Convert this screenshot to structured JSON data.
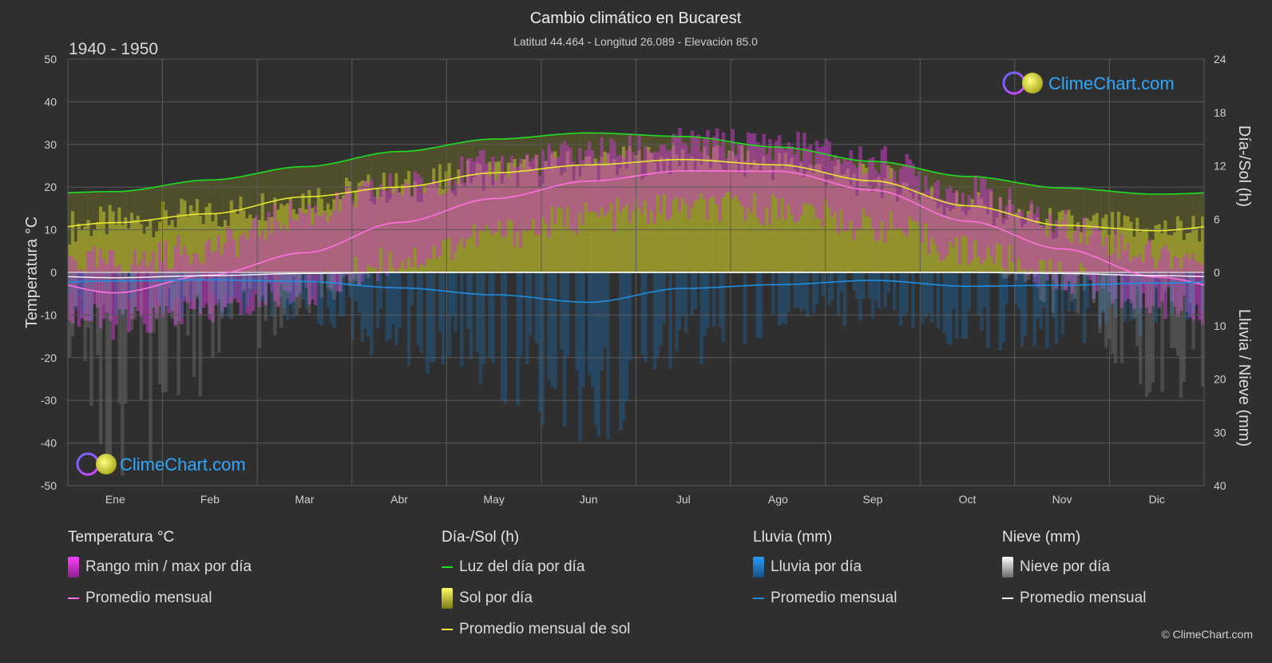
{
  "title": "Cambio climático en Bucarest",
  "subtitle": "Latitud 44.464 - Longitud 26.089 - Elevación 85.0",
  "period": "1940 - 1950",
  "brand": "ClimeChart.com",
  "copyright": "© ClimeChart.com",
  "colors": {
    "background": "#2f2f2f",
    "daylight": "#22dd22",
    "sunshine_avg": "#e8e830",
    "sunshine_fill": "#a8a830",
    "temp_avg": "#ff70e0",
    "temp_range": "#d23ad2",
    "rain": "#1f8ee0",
    "snow": "#ffffff"
  },
  "chart_data": {
    "type": "line",
    "months": [
      "Ene",
      "Feb",
      "Mar",
      "Abr",
      "May",
      "Jun",
      "Jul",
      "Ago",
      "Sep",
      "Oct",
      "Nov",
      "Dic"
    ],
    "y_left": {
      "label": "Temperatura °C",
      "min": -50,
      "max": 50,
      "ticks": [
        50,
        40,
        30,
        20,
        10,
        0,
        -10,
        -20,
        -30,
        -40,
        -50
      ]
    },
    "y_right_top": {
      "label": "Día-/Sol (h)",
      "min": 0,
      "max": 24,
      "ticks": [
        24,
        18,
        12,
        6,
        0
      ]
    },
    "y_right_bottom": {
      "label": "Lluvia / Nieve (mm)",
      "min": 0,
      "max": 40,
      "ticks": [
        0,
        10,
        20,
        30,
        40
      ]
    },
    "series": [
      {
        "name": "Luz del día por día",
        "axis": "hours",
        "values": [
          9.1,
          10.4,
          11.9,
          13.6,
          15.0,
          15.7,
          15.3,
          14.1,
          12.5,
          10.8,
          9.5,
          8.8
        ]
      },
      {
        "name": "Promedio mensual de sol",
        "axis": "hours",
        "values": [
          5.6,
          6.6,
          8.5,
          9.6,
          11.2,
          12.1,
          12.7,
          12.1,
          10.3,
          7.5,
          5.3,
          4.7
        ]
      },
      {
        "name": "Promedio mensual",
        "kind": "temperature",
        "axis": "temp",
        "values": [
          -4.8,
          -0.6,
          4.6,
          11.7,
          17.3,
          21.4,
          23.8,
          23.7,
          19.3,
          12.0,
          5.5,
          -1.1
        ]
      },
      {
        "name": "Promedio mensual",
        "kind": "rain",
        "axis": "precip",
        "values": [
          1.6,
          1.4,
          1.7,
          2.9,
          4.2,
          5.6,
          3.0,
          2.3,
          1.5,
          2.6,
          2.4,
          2.0
        ]
      },
      {
        "name": "Promedio mensual",
        "kind": "snow",
        "axis": "precip",
        "values": [
          1.0,
          0.6,
          0.2,
          0.0,
          0.0,
          0.0,
          0.0,
          0.0,
          0.0,
          0.0,
          0.2,
          0.6
        ]
      }
    ],
    "temp_range_by_month": {
      "max": [
        2,
        6,
        14,
        20,
        25,
        28,
        30,
        30,
        26,
        19,
        11,
        4
      ],
      "min": [
        -12,
        -9,
        -4,
        3,
        9,
        13,
        15,
        15,
        11,
        5,
        -1,
        -7
      ]
    }
  },
  "legend": {
    "temperature": {
      "title": "Temperatura °C",
      "range": "Rango min / max por día",
      "avg": "Promedio mensual"
    },
    "sun": {
      "title": "Día-/Sol (h)",
      "daylight": "Luz del día por día",
      "sun": "Sol por día",
      "avg": "Promedio mensual de sol"
    },
    "rain": {
      "title": "Lluvia (mm)",
      "daily": "Lluvia por día",
      "avg": "Promedio mensual"
    },
    "snow": {
      "title": "Nieve (mm)",
      "daily": "Nieve por día",
      "avg": "Promedio mensual"
    }
  }
}
